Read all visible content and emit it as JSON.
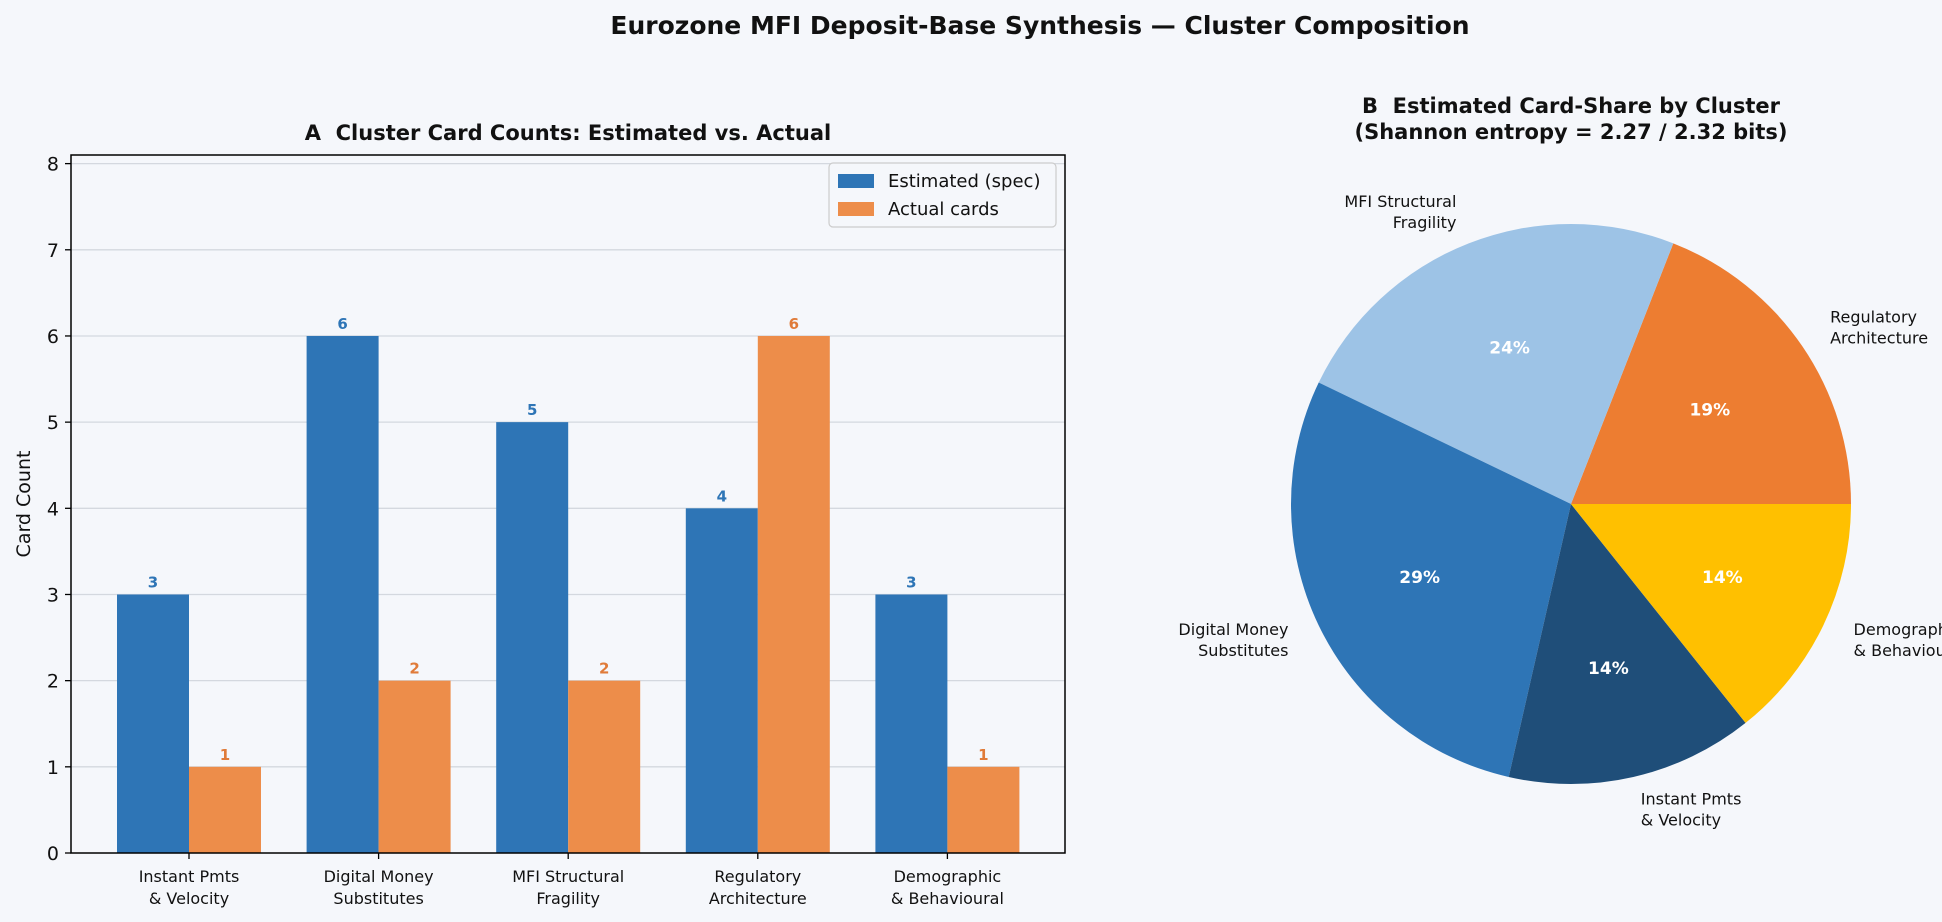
{
  "figure": {
    "title": "Eurozone MFI Deposit-Base Synthesis — Cluster Composition"
  },
  "colors": {
    "background": "#f5f7fb",
    "estimated": "#2e75b6",
    "actual": "#ed8d4a",
    "actual_label": "#e07b39",
    "pie": [
      "#ed7d31",
      "#9dc3e6",
      "#2e75b6",
      "#1f4e79",
      "#ffc000"
    ]
  },
  "chart_data": [
    {
      "type": "bar",
      "title": "A  Cluster Card Counts: Estimated vs. Actual",
      "xlabel": "",
      "ylabel": "Card Count",
      "ylim": [
        0,
        8.1
      ],
      "yticks": [
        "0",
        "1",
        "2",
        "3",
        "4",
        "5",
        "6",
        "7",
        "8"
      ],
      "grid": "horizontal",
      "legend_position": "top-right",
      "categories": [
        [
          "Instant Pmts",
          "& Velocity"
        ],
        [
          "Digital Money",
          "Substitutes"
        ],
        [
          "MFI Structural",
          "Fragility"
        ],
        [
          "Regulatory",
          "Architecture"
        ],
        [
          "Demographic",
          "& Behavioural"
        ]
      ],
      "series": [
        {
          "name": "Estimated (spec)",
          "values": [
            3,
            6,
            5,
            4,
            3
          ]
        },
        {
          "name": "Actual cards",
          "values": [
            1,
            2,
            2,
            6,
            1
          ]
        }
      ]
    },
    {
      "type": "pie",
      "title": "B  Estimated Card-Share by Cluster",
      "subtitle": "(Shannon entropy = 2.27 / 2.32 bits)",
      "slices": [
        {
          "label": [
            "Regulatory",
            "Architecture"
          ],
          "value": 4,
          "pct": "19%"
        },
        {
          "label": [
            "MFI Structural",
            "Fragility"
          ],
          "value": 5,
          "pct": "24%"
        },
        {
          "label": [
            "Digital Money",
            "Substitutes"
          ],
          "value": 6,
          "pct": "29%"
        },
        {
          "label": [
            "Instant Pmts",
            "& Velocity"
          ],
          "value": 3,
          "pct": "14%"
        },
        {
          "label": [
            "Demographic",
            "& Behavioural"
          ],
          "value": 3,
          "pct": "14%"
        }
      ]
    }
  ]
}
